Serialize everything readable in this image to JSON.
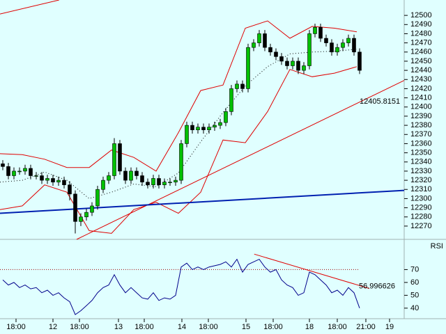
{
  "chart_data": [
    {
      "type": "candlestick",
      "x": [
        0,
        1,
        2,
        3,
        4,
        5,
        6,
        7,
        8,
        9,
        10,
        11,
        12,
        13,
        14,
        15,
        16,
        17,
        18,
        19,
        20,
        21,
        22,
        23,
        24,
        25,
        26,
        27,
        28,
        29,
        30,
        31,
        32,
        33,
        34,
        35,
        36,
        37,
        38,
        39,
        40,
        41,
        42,
        43,
        44,
        45,
        46,
        47,
        48,
        49,
        50,
        51,
        52,
        53,
        54,
        55,
        56,
        57,
        58,
        59,
        60,
        61,
        62,
        63,
        64
      ],
      "open": [
        12338,
        12335,
        12325,
        12330,
        12330,
        12333,
        12325,
        12325,
        12320,
        12322,
        12318,
        12320,
        12315,
        12305,
        12275,
        12280,
        12285,
        12292,
        12310,
        12320,
        12325,
        12360,
        12330,
        12320,
        12330,
        12325,
        12318,
        12315,
        12322,
        12315,
        12318,
        12318,
        12320,
        12360,
        12380,
        12375,
        12378,
        12375,
        12378,
        12380,
        12383,
        12395,
        12420,
        12425,
        12420,
        12465,
        12470,
        12480,
        12465,
        12460,
        12455,
        12450,
        12445,
        12450,
        12440,
        12445,
        12480,
        12487,
        12475,
        12470,
        12460,
        12465,
        12470,
        12475,
        12460
      ],
      "high": [
        12342,
        12339,
        12334,
        12334,
        12337,
        12337,
        12329,
        12329,
        12326,
        12326,
        12324,
        12324,
        12319,
        12309,
        12284,
        12289,
        12296,
        12314,
        12324,
        12329,
        12366,
        12364,
        12334,
        12334,
        12334,
        12329,
        12322,
        12326,
        12326,
        12322,
        12322,
        12324,
        12364,
        12384,
        12384,
        12382,
        12382,
        12382,
        12384,
        12387,
        12399,
        12424,
        12429,
        12429,
        12469,
        12474,
        12484,
        12484,
        12469,
        12464,
        12459,
        12454,
        12454,
        12454,
        12449,
        12484,
        12491,
        12491,
        12479,
        12474,
        12469,
        12474,
        12479,
        12479,
        12464
      ],
      "low": [
        12331,
        12321,
        12321,
        12326,
        12326,
        12321,
        12321,
        12316,
        12316,
        12314,
        12314,
        12311,
        12298,
        12262,
        12270,
        12276,
        12281,
        12288,
        12306,
        12316,
        12321,
        12326,
        12316,
        12316,
        12321,
        12314,
        12311,
        12311,
        12311,
        12311,
        12314,
        12314,
        12316,
        12356,
        12371,
        12371,
        12371,
        12371,
        12374,
        12376,
        12379,
        12391,
        12416,
        12416,
        12416,
        12461,
        12466,
        12461,
        12456,
        12451,
        12446,
        12441,
        12441,
        12436,
        12436,
        12441,
        12476,
        12471,
        12466,
        12456,
        12456,
        12461,
        12466,
        12456,
        12436
      ],
      "close": [
        12335,
        12325,
        12330,
        12330,
        12333,
        12325,
        12325,
        12320,
        12322,
        12318,
        12320,
        12315,
        12305,
        12275,
        12280,
        12285,
        12292,
        12310,
        12320,
        12325,
        12360,
        12330,
        12320,
        12330,
        12325,
        12318,
        12315,
        12322,
        12315,
        12318,
        12318,
        12320,
        12360,
        12380,
        12375,
        12378,
        12375,
        12378,
        12380,
        12383,
        12395,
        12420,
        12425,
        12420,
        12465,
        12470,
        12480,
        12465,
        12460,
        12455,
        12450,
        12445,
        12450,
        12440,
        12445,
        12480,
        12487,
        12475,
        12470,
        12460,
        12465,
        12470,
        12475,
        12460,
        12440
      ],
      "up_color": "#00c000",
      "down_color": "#000000",
      "xlim": [
        -0.5,
        72
      ],
      "ylim": [
        12255.5,
        12516.8
      ],
      "yticks": [
        12270,
        12280,
        12290,
        12300,
        12310,
        12320,
        12330,
        12340,
        12350,
        12360,
        12370,
        12380,
        12390,
        12400,
        12410,
        12420,
        12430,
        12440,
        12450,
        12460,
        12470,
        12480,
        12490,
        12500
      ],
      "bands": {
        "x": [
          -0.5,
          3.5,
          7.5,
          11.5,
          15.5,
          19.5,
          23.5,
          27.5,
          31.5,
          35.5,
          39.5,
          43.5,
          47.5,
          51.5,
          55.5,
          59.5,
          63.5
        ],
        "upper": [
          12349,
          12348,
          12343,
          12334,
          12334,
          12353,
          12345,
          12330,
          12372,
          12418,
          12424,
          12486,
          12494,
          12475,
          12488,
          12486,
          12482
        ],
        "middle": [
          12318,
          12320,
          12329,
          12320,
          12300,
          12307,
          12316,
          12313,
          12328,
          12362,
          12394,
          12423,
          12444,
          12458,
          12460,
          12461,
          12463
        ],
        "lower": [
          12288,
          12292,
          12315,
          12307,
          12265,
          12262,
          12288,
          12296,
          12284,
          12307,
          12364,
          12361,
          12395,
          12441,
          12433,
          12437,
          12444
        ],
        "band_color": "#e00000",
        "middle_color": "#000000"
      },
      "trendlines": [
        {
          "x": [
            13.25,
            72
          ],
          "y": [
            12255.5,
            12429
          ],
          "color": "#e00000",
          "label": 12405.8151
        },
        {
          "x": [
            -0.5,
            72
          ],
          "y": [
            12284,
            12309
          ],
          "color": "#0020b0"
        },
        {
          "x": [
            -0.5,
            10.1
          ],
          "y": [
            12501.5,
            12516.8
          ],
          "color": "#e00000"
        }
      ]
    },
    {
      "type": "line",
      "title": "RSI",
      "x": [
        0,
        1,
        2,
        3,
        4,
        5,
        6,
        7,
        8,
        9,
        10,
        11,
        12,
        13,
        14,
        15,
        16,
        17,
        18,
        19,
        20,
        21,
        22,
        23,
        24,
        25,
        26,
        27,
        28,
        29,
        30,
        31,
        32,
        33,
        34,
        35,
        36,
        37,
        38,
        39,
        40,
        41,
        42,
        43,
        44,
        45,
        46,
        47,
        48,
        49,
        50,
        51,
        52,
        53,
        54,
        55,
        56,
        57,
        58,
        59,
        60,
        61,
        62,
        63,
        64
      ],
      "values": [
        62,
        58,
        60,
        56,
        58,
        55,
        56,
        52,
        54,
        50,
        52,
        48,
        45,
        35,
        38,
        42,
        46,
        52,
        56,
        58,
        66,
        58,
        52,
        56,
        52,
        48,
        47,
        52,
        46,
        48,
        47,
        50,
        72,
        75,
        70,
        72,
        70,
        72,
        73,
        74,
        76,
        72,
        78,
        68,
        74,
        76,
        78,
        72,
        68,
        70,
        62,
        58,
        56,
        50,
        52,
        68,
        66,
        62,
        58,
        52,
        54,
        50,
        56,
        52,
        40
      ],
      "color": "#00008b",
      "xlim": [
        -0.5,
        72
      ],
      "ylim": [
        31.8,
        93.5
      ],
      "yticks": [
        40,
        50,
        60,
        70
      ],
      "level": 70,
      "trendline": {
        "x": [
          45.1,
          65.75
        ],
        "y": [
          82,
          55.3
        ],
        "color": "#e00000",
        "label": 56.996626
      },
      "xticks": [
        {
          "value": 2.375,
          "label": "18:00"
        },
        {
          "value": 9,
          "label": "12"
        },
        {
          "value": 13.75,
          "label": "18:00"
        },
        {
          "value": 20.75,
          "label": "13"
        },
        {
          "value": 25.375,
          "label": "18:00"
        },
        {
          "value": 32.125,
          "label": "14"
        },
        {
          "value": 36.875,
          "label": "18:00"
        },
        {
          "value": 43.625,
          "label": "15"
        },
        {
          "value": 48.5,
          "label": "18:00"
        },
        {
          "value": 55,
          "label": "18"
        },
        {
          "value": 60,
          "label": "18:00"
        },
        {
          "value": 65.125,
          "label": "21:00"
        },
        {
          "value": 69.375,
          "label": "19"
        }
      ]
    }
  ]
}
